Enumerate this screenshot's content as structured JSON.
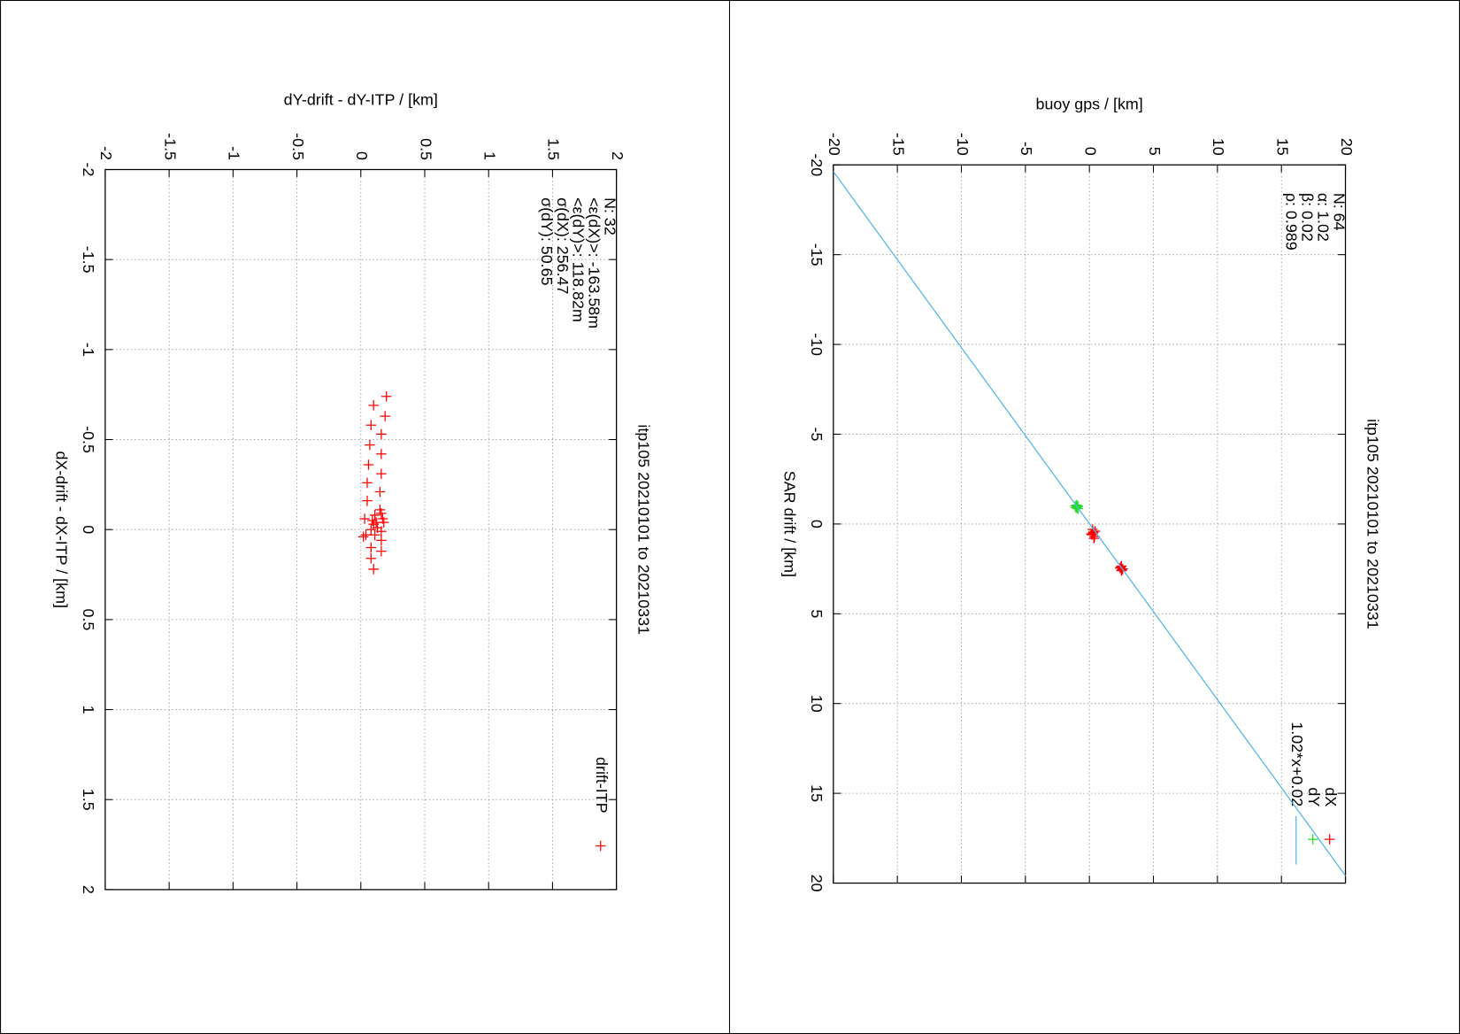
{
  "chart_data": [
    {
      "type": "scatter",
      "title": "itp105 20210101 to 20210331",
      "x_label": "dX-drift - dX-ITP / [km]",
      "y_label": "dY-drift - dY-ITP / [km]",
      "xlim": [
        -2,
        2
      ],
      "ylim": [
        -2,
        2
      ],
      "xticks": [
        -2,
        -1.5,
        -1,
        -0.5,
        0,
        0.5,
        1,
        1.5,
        2
      ],
      "yticks": [
        -2,
        -1.5,
        -1,
        -0.5,
        0,
        0.5,
        1,
        1.5,
        2
      ],
      "grid": true,
      "legend": "top right",
      "annotations": [
        "N: 32",
        "<ε(dX)>: -163.58m",
        "<ε(dY)>: 118.82m",
        "σ(dX): 256.47",
        "σ(dY): 50.65"
      ],
      "series": [
        {
          "name": "drift-ITP",
          "color": "#ff0000",
          "x": [
            -0.74,
            -0.69,
            -0.63,
            -0.58,
            -0.53,
            -0.47,
            -0.42,
            -0.36,
            -0.31,
            -0.26,
            -0.21,
            -0.16,
            -0.11,
            -0.09,
            -0.08,
            -0.06,
            -0.05,
            -0.04,
            -0.06,
            -0.03,
            -0.01,
            0.0,
            0.01,
            0.04,
            0.03,
            0.06,
            0.1,
            0.12,
            0.16,
            0.22,
            0.03,
            -0.04
          ],
          "values": [
            0.2,
            0.1,
            0.19,
            0.08,
            0.16,
            0.07,
            0.16,
            0.06,
            0.16,
            0.05,
            0.15,
            0.05,
            0.15,
            0.16,
            0.11,
            0.17,
            0.09,
            0.18,
            0.03,
            0.1,
            0.13,
            0.08,
            0.16,
            0.02,
            0.11,
            0.16,
            0.08,
            0.16,
            0.08,
            0.1,
            0.04,
            0.12
          ]
        }
      ]
    },
    {
      "type": "scatter",
      "title": "itp105 20210101 to 20210331",
      "x_label": "SAR drift / [km]",
      "y_label": "buoy gps / [km]",
      "xlim": [
        -20,
        20
      ],
      "ylim": [
        -20,
        20
      ],
      "xticks": [
        -20,
        -15,
        -10,
        -5,
        0,
        5,
        10,
        15,
        20
      ],
      "yticks": [
        -20,
        -15,
        -10,
        -5,
        0,
        5,
        10,
        15,
        20
      ],
      "grid": true,
      "legend": "top right",
      "annotations": [
        "N: 64",
        "α: 1.02",
        "β: 0.02",
        "ρ: 0.989"
      ],
      "series": [
        {
          "name": "dX",
          "color": "#ff0000",
          "x": [
            0.3,
            0.5,
            0.6,
            0.8,
            0.4,
            0.7,
            0.55,
            0.45,
            2.4,
            2.5,
            2.6,
            2.45,
            2.55,
            2.35
          ],
          "values": [
            0.25,
            0.3,
            0.2,
            0.35,
            0.45,
            0.4,
            0.15,
            0.3,
            2.45,
            2.6,
            2.5,
            2.4,
            2.55,
            2.5
          ]
        },
        {
          "name": "dY",
          "color": "#22dd22",
          "x": [
            -0.9,
            -1.0,
            -0.85,
            -0.95,
            -1.05,
            -0.9,
            -1.0
          ],
          "values": [
            -1.0,
            -1.1,
            -0.9,
            -0.95,
            -1.0,
            -1.05,
            -0.9
          ]
        },
        {
          "name": "1.02*x+0.02",
          "color": "#56b4e9",
          "type": "line",
          "slope": 1.02,
          "intercept": 0.02
        }
      ]
    }
  ]
}
